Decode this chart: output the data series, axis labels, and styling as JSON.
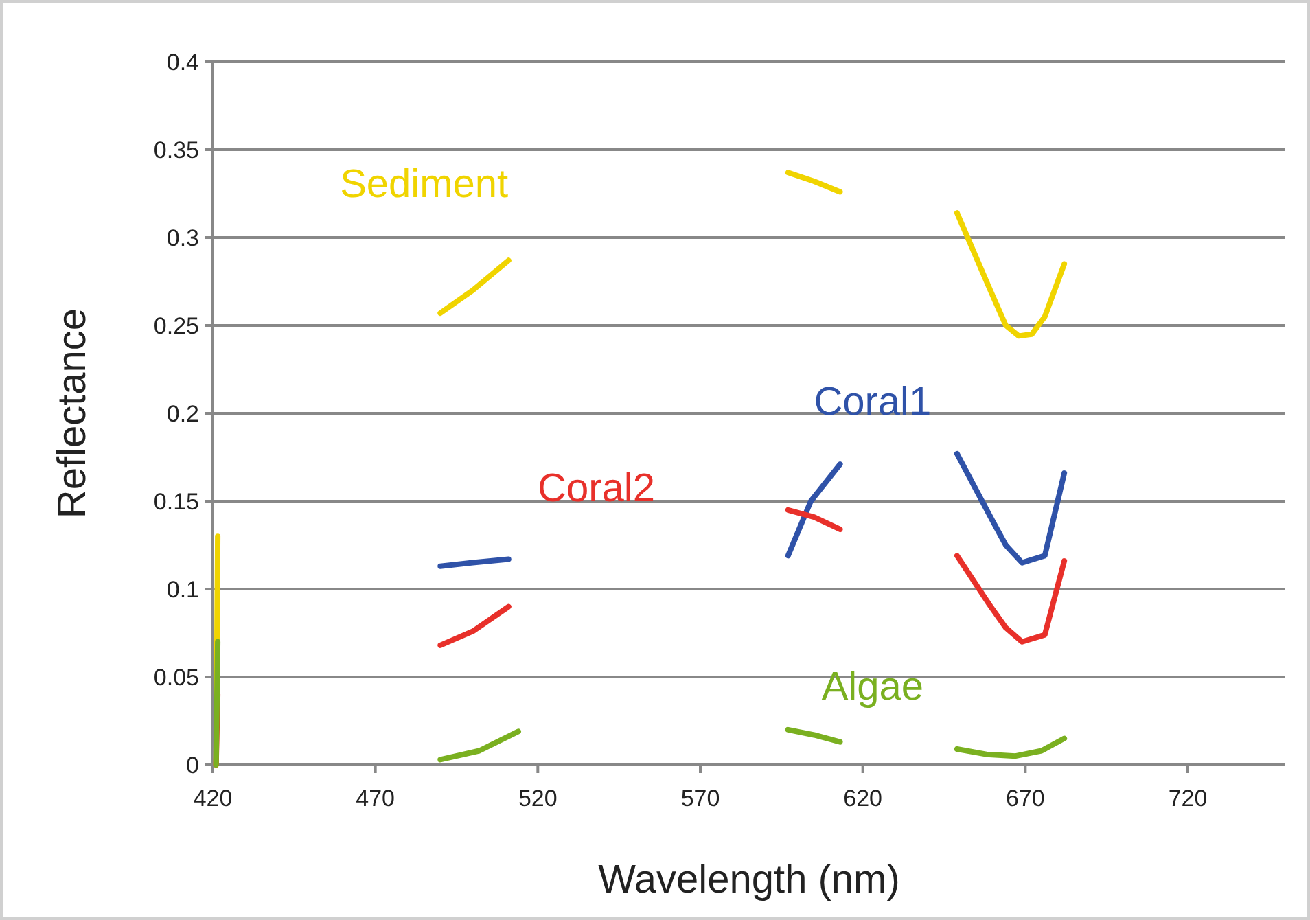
{
  "chart_data": {
    "type": "line",
    "xlabel": "Wavelength (nm)",
    "ylabel": "Reflectance",
    "xlim": [
      420,
      750
    ],
    "xticks": [
      420,
      470,
      520,
      570,
      620,
      670,
      720
    ],
    "ylim": [
      0,
      0.4
    ],
    "yticks": [
      0,
      0.05,
      0.1,
      0.15,
      0.2,
      0.25,
      0.3,
      0.35,
      0.4
    ],
    "grid": "y",
    "line_style": "solid",
    "series": [
      {
        "name": "Sediment",
        "color": "#f0d400",
        "x": [
          421,
          421.5,
          490,
          500,
          511,
          597,
          605,
          613,
          649,
          659,
          664,
          668,
          672,
          676,
          682
        ],
        "values": [
          0,
          0.13,
          0.257,
          0.27,
          0.287,
          0.337,
          0.332,
          0.326,
          0.314,
          0.271,
          0.25,
          0.244,
          0.245,
          0.255,
          0.285
        ]
      },
      {
        "name": "Coral1",
        "color": "#2f52a8",
        "x": [
          490,
          500,
          511,
          597,
          604,
          613,
          649,
          659,
          664,
          669,
          676,
          682
        ],
        "values": [
          0.113,
          0.115,
          0.117,
          0.119,
          0.15,
          0.171,
          0.177,
          0.142,
          0.125,
          0.115,
          0.119,
          0.166
        ]
      },
      {
        "name": "Coral2",
        "color": "#e8302a",
        "x": [
          421,
          421.5,
          490,
          500,
          511,
          597,
          605,
          613,
          649,
          659,
          664,
          669,
          676,
          682
        ],
        "values": [
          0,
          0.04,
          0.068,
          0.076,
          0.09,
          0.145,
          0.141,
          0.134,
          0.119,
          0.091,
          0.078,
          0.07,
          0.074,
          0.116
        ]
      },
      {
        "name": "Algae",
        "color": "#7ab020",
        "x": [
          421,
          421.5,
          490,
          502,
          514,
          597,
          605,
          613,
          649,
          658,
          667,
          675,
          682
        ],
        "values": [
          0,
          0.07,
          0.003,
          0.008,
          0.019,
          0.02,
          0.017,
          0.013,
          0.009,
          0.006,
          0.005,
          0.008,
          0.015
        ]
      }
    ]
  }
}
